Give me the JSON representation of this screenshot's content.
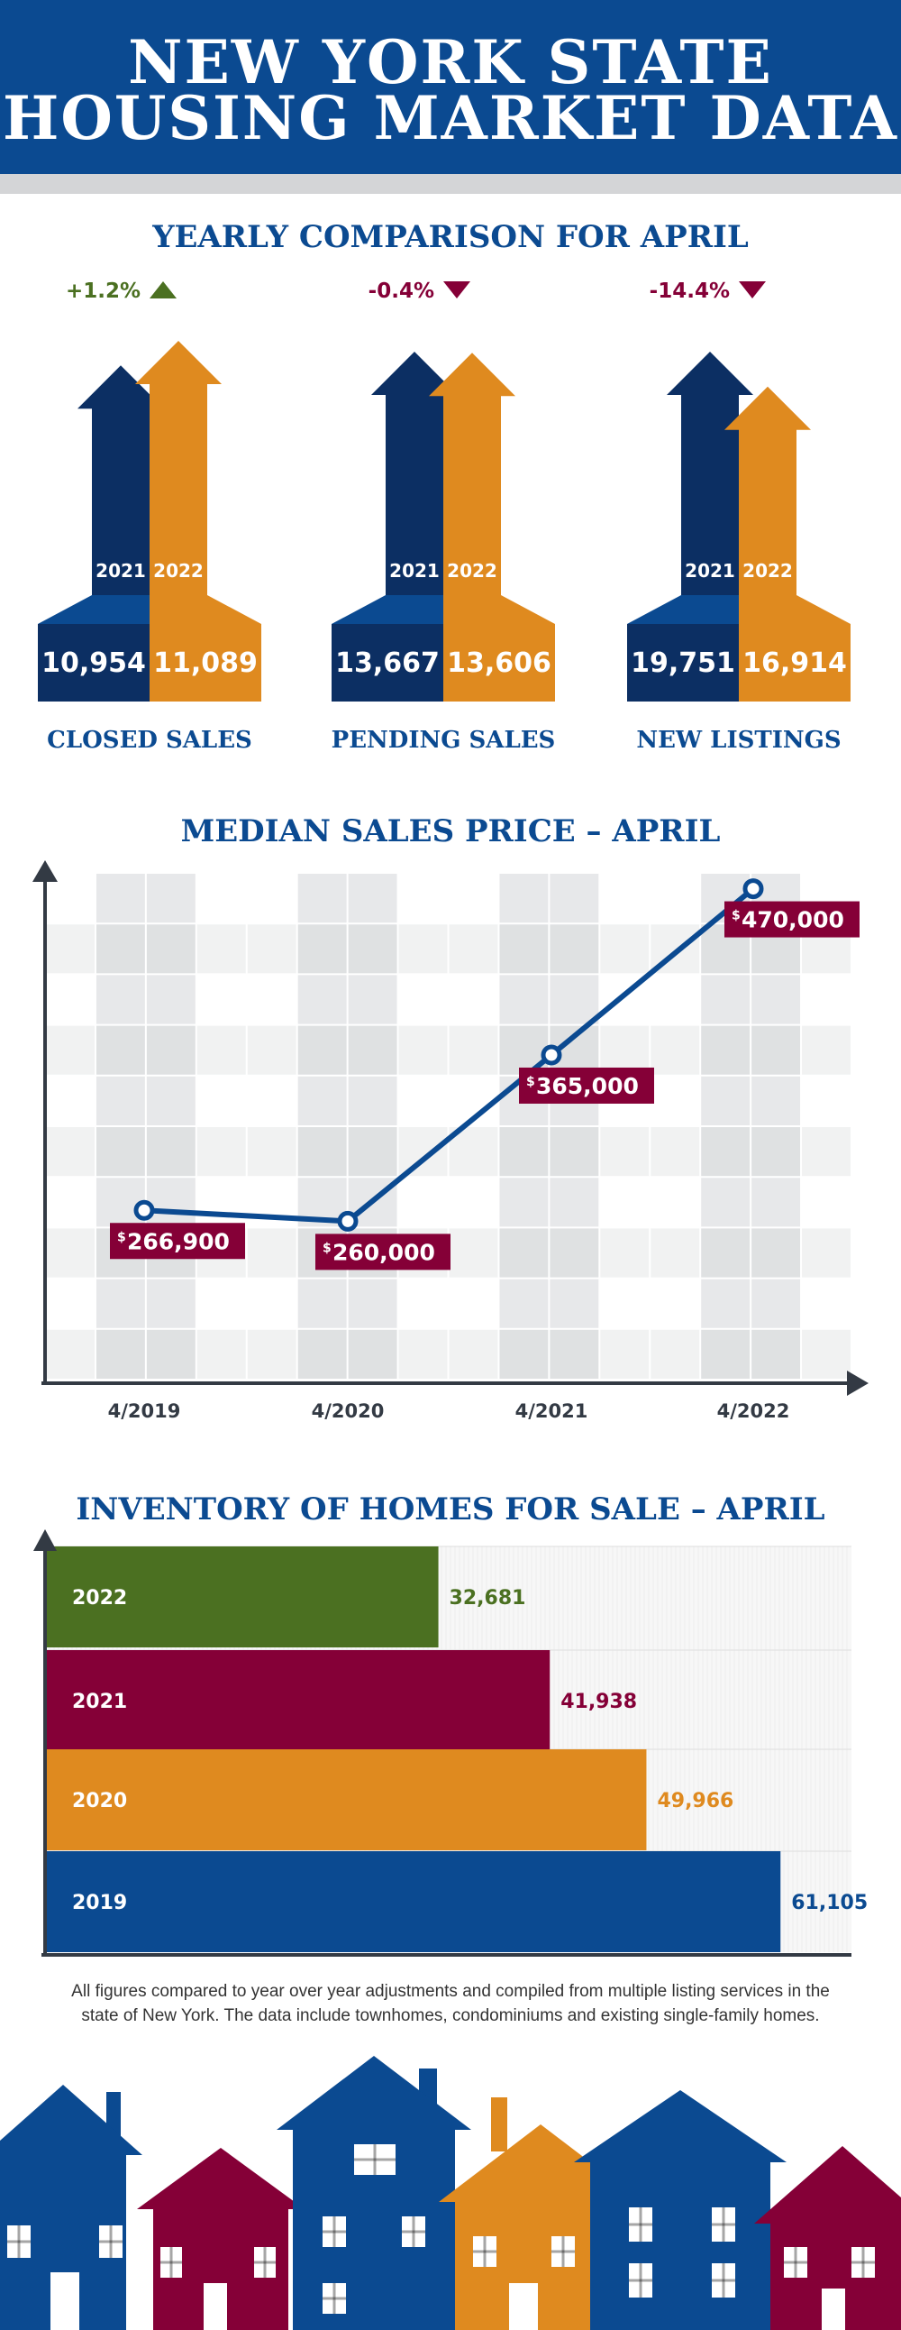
{
  "header": {
    "line1": "NEW YORK STATE",
    "line2": "HOUSING MARKET DATA"
  },
  "colors": {
    "navy": "#0b4a91",
    "dark_navy": "#0c2f63",
    "orange": "#df8a1f",
    "green": "#4b7021",
    "maroon": "#850037",
    "gray": "#d4d5d7"
  },
  "yearly": {
    "title": "YEARLY COMPARISON FOR APRIL",
    "metrics": [
      {
        "label": "CLOSED SALES",
        "change": "+1.2%",
        "direction": "up",
        "year1": "2021",
        "year2": "2022",
        "value1": "10,954",
        "value2": "11,089",
        "v1": 10954,
        "v2": 11089
      },
      {
        "label": "PENDING SALES",
        "change": "-0.4%",
        "direction": "down",
        "year1": "2021",
        "year2": "2022",
        "value1": "13,667",
        "value2": "13,606",
        "v1": 13667,
        "v2": 13606
      },
      {
        "label": "NEW LISTINGS",
        "change": "-14.4%",
        "direction": "down",
        "year1": "2021",
        "year2": "2022",
        "value1": "19,751",
        "value2": "16,914",
        "v1": 19751,
        "v2": 16914
      }
    ]
  },
  "price": {
    "title": "MEDIAN SALES PRICE – APRIL"
  },
  "inventory": {
    "title": "INVENTORY OF HOMES FOR SALE – APRIL"
  },
  "chart_data": [
    {
      "type": "line",
      "title": "MEDIAN SALES PRICE – APRIL",
      "x": [
        "4/2019",
        "4/2020",
        "4/2021",
        "4/2022"
      ],
      "y": [
        266900,
        260000,
        365000,
        470000
      ],
      "labels": [
        "266,900",
        "260,000",
        "365,000",
        "470,000"
      ],
      "currency": "$",
      "ylim": [
        160000,
        480000
      ],
      "grid": true,
      "color": "#0b4a91",
      "label_color": "#850037"
    },
    {
      "type": "bar",
      "orientation": "horizontal",
      "title": "INVENTORY OF HOMES FOR SALE – APRIL",
      "categories": [
        "2022",
        "2021",
        "2020",
        "2019"
      ],
      "values": [
        32681,
        41938,
        49966,
        61105
      ],
      "labels": [
        "32,681",
        "41,938",
        "49,966",
        "61,105"
      ],
      "colors": [
        "#4b7021",
        "#850037",
        "#df8a1f",
        "#0b4a91"
      ],
      "xlim": [
        0,
        67000
      ]
    }
  ],
  "footnote": {
    "line1": "All figures compared to year over year adjustments and compiled from multiple listing services in the",
    "line2": "state of New York.  The data include townhomes, condominiums and existing single-family homes."
  }
}
